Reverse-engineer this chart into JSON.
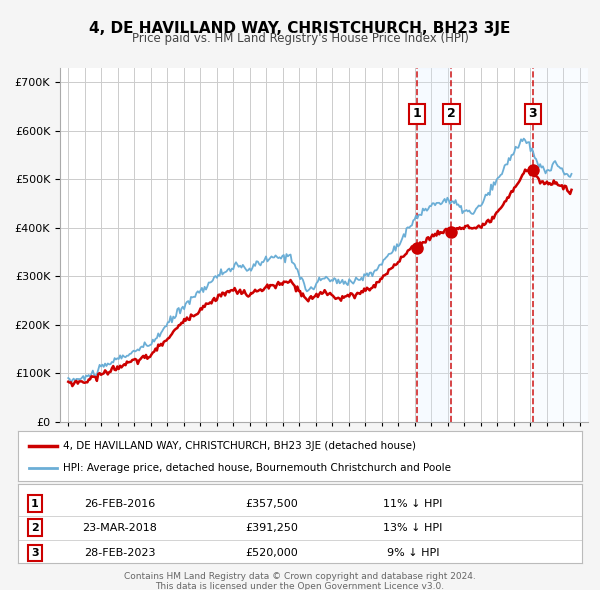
{
  "title": "4, DE HAVILLAND WAY, CHRISTCHURCH, BH23 3JE",
  "subtitle": "Price paid vs. HM Land Registry's House Price Index (HPI)",
  "hpi_label": "HPI: Average price, detached house, Bournemouth Christchurch and Poole",
  "property_label": "4, DE HAVILLAND WAY, CHRISTCHURCH, BH23 3JE (detached house)",
  "footer_line1": "Contains HM Land Registry data © Crown copyright and database right 2024.",
  "footer_line2": "This data is licensed under the Open Government Licence v3.0.",
  "hpi_color": "#6baed6",
  "property_color": "#cc0000",
  "sale_marker_color": "#cc0000",
  "background_color": "#f5f5f5",
  "plot_bg_color": "#ffffff",
  "grid_color": "#cccccc",
  "highlight_color": "#ddeeff",
  "sale_events": [
    {
      "date": 2016.15,
      "price": 357500,
      "label": "1",
      "date_str": "26-FEB-2016",
      "price_str": "£357,500",
      "pct": "11%"
    },
    {
      "date": 2018.22,
      "price": 391250,
      "label": "2",
      "date_str": "23-MAR-2018",
      "price_str": "£391,250",
      "pct": "13%"
    },
    {
      "date": 2023.15,
      "price": 520000,
      "label": "3",
      "date_str": "28-FEB-2023",
      "price_str": "£520,000",
      "pct": "9%"
    }
  ],
  "ylim": [
    0,
    730000
  ],
  "yticks": [
    0,
    100000,
    200000,
    300000,
    400000,
    500000,
    600000,
    700000
  ],
  "xlim": [
    1994.5,
    2026.5
  ],
  "xticks": [
    1995,
    1996,
    1997,
    1998,
    1999,
    2000,
    2001,
    2002,
    2003,
    2004,
    2005,
    2006,
    2007,
    2008,
    2009,
    2010,
    2011,
    2012,
    2013,
    2014,
    2015,
    2016,
    2017,
    2018,
    2019,
    2020,
    2021,
    2022,
    2023,
    2024,
    2025,
    2026
  ]
}
